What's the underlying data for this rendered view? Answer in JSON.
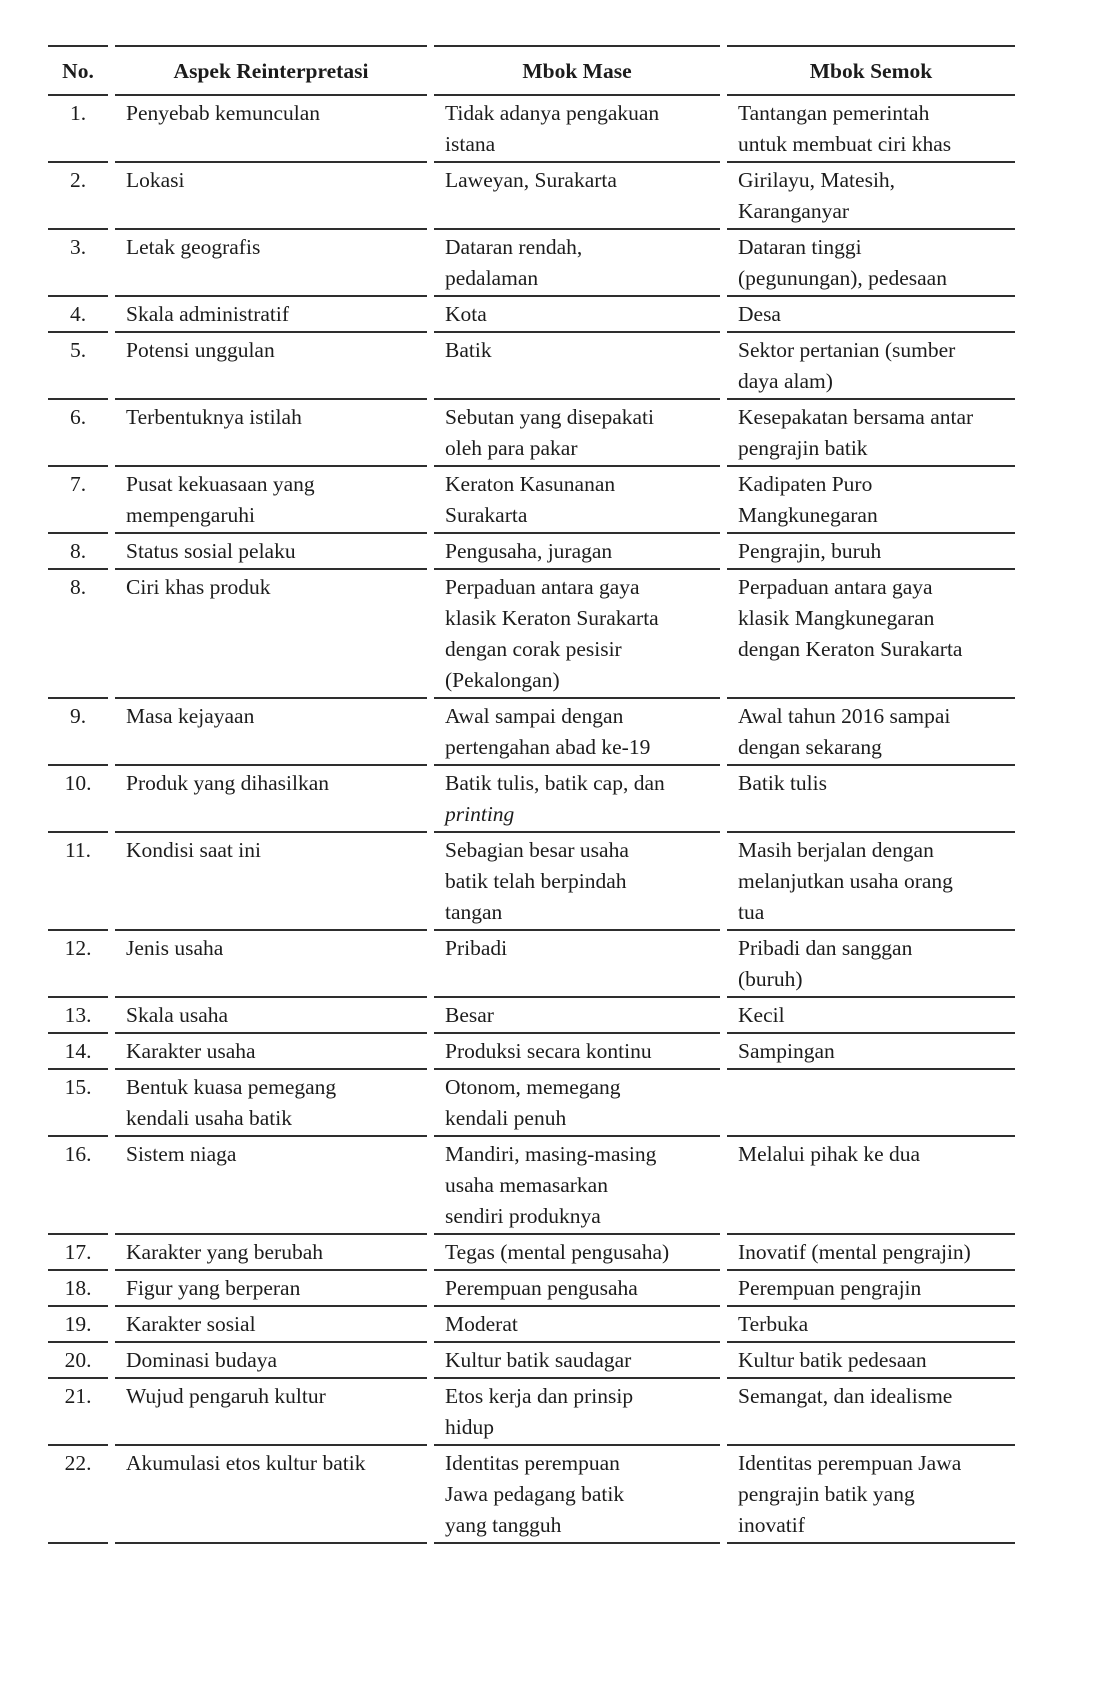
{
  "page": {
    "background_color": "#ffffff",
    "text_color": "#1c1c1c",
    "rule_color": "#2e2e2e"
  },
  "table": {
    "columns": [
      {
        "key": "no",
        "label": "No."
      },
      {
        "key": "aspek",
        "label": "Aspek Reinterpretasi"
      },
      {
        "key": "mase",
        "label": "Mbok Mase"
      },
      {
        "key": "semok",
        "label": "Mbok Semok"
      }
    ],
    "rows": [
      {
        "no": "1.",
        "aspek": "Penyebab kemunculan",
        "mase": "Tidak adanya pengakuan\nistana",
        "semok": "Tantangan pemerintah\nuntuk membuat ciri khas"
      },
      {
        "no": "2.",
        "aspek": "Lokasi",
        "mase": "Laweyan, Surakarta",
        "semok": "Girilayu, Matesih,\nKaranganyar"
      },
      {
        "no": "3.",
        "aspek": "Letak geografis",
        "mase": "Dataran rendah,\npedalaman",
        "semok": "Dataran tinggi\n(pegunungan), pedesaan"
      },
      {
        "no": "4.",
        "aspek": "Skala administratif",
        "mase": "Kota",
        "semok": "Desa"
      },
      {
        "no": "5.",
        "aspek": "Potensi unggulan",
        "mase": "Batik",
        "semok": "Sektor pertanian (sumber\ndaya alam)"
      },
      {
        "no": "6.",
        "aspek": "Terbentuknya istilah",
        "mase": "Sebutan yang disepakati\noleh para pakar",
        "semok": "Kesepakatan bersama antar\npengrajin batik"
      },
      {
        "no": "7.",
        "aspek": "Pusat kekuasaan yang\nmempengaruhi",
        "mase": "Keraton Kasunanan\nSurakarta",
        "semok": "Kadipaten Puro\nMangkunegaran"
      },
      {
        "no": "8.",
        "aspek": "Status sosial pelaku",
        "mase": "Pengusaha, juragan",
        "semok": "Pengrajin, buruh"
      },
      {
        "no": "8.",
        "aspek": "Ciri khas produk",
        "mase": "Perpaduan antara gaya\nklasik Keraton Surakarta\ndengan corak pesisir\n(Pekalongan)",
        "semok": "Perpaduan antara gaya\nklasik Mangkunegaran\ndengan Keraton Surakarta"
      },
      {
        "no": "9.",
        "aspek": "Masa kejayaan",
        "mase": "Awal sampai dengan\npertengahan abad ke-19",
        "semok": "Awal tahun 2016 sampai\ndengan sekarang"
      },
      {
        "no": "10.",
        "aspek": "Produk yang dihasilkan",
        "mase": {
          "text": "Batik tulis, batik cap, dan\nprinting",
          "italic": "printing"
        },
        "semok": "Batik tulis"
      },
      {
        "no": "11.",
        "aspek": "Kondisi saat ini",
        "mase": "Sebagian besar usaha\nbatik telah berpindah\ntangan",
        "semok": "Masih berjalan dengan\nmelanjutkan usaha orang\ntua"
      },
      {
        "no": "12.",
        "aspek": "Jenis usaha",
        "mase": "Pribadi",
        "semok": "Pribadi dan sanggan\n(buruh)"
      },
      {
        "no": "13.",
        "aspek": "Skala usaha",
        "mase": "Besar",
        "semok": "Kecil"
      },
      {
        "no": "14.",
        "aspek": "Karakter usaha",
        "mase": "Produksi secara kontinu",
        "semok": "Sampingan"
      },
      {
        "no": "15.",
        "aspek": "Bentuk kuasa pemegang\nkendali usaha batik",
        "mase": "Otonom, memegang\nkendali penuh",
        "semok": ""
      },
      {
        "no": "16.",
        "aspek": "Sistem niaga",
        "mase": "Mandiri, masing-masing\nusaha memasarkan\nsendiri produknya",
        "semok": "Melalui pihak ke dua"
      },
      {
        "no": "17.",
        "aspek": "Karakter yang berubah",
        "mase": "Tegas (mental pengusaha)",
        "semok": "Inovatif (mental pengrajin)"
      },
      {
        "no": "18.",
        "aspek": "Figur yang berperan",
        "mase": "Perempuan pengusaha",
        "semok": "Perempuan pengrajin"
      },
      {
        "no": "19.",
        "aspek": "Karakter sosial",
        "mase": "Moderat",
        "semok": "Terbuka"
      },
      {
        "no": "20.",
        "aspek": "Dominasi budaya",
        "mase": "Kultur batik saudagar",
        "semok": "Kultur batik pedesaan"
      },
      {
        "no": "21.",
        "aspek": "Wujud pengaruh kultur",
        "mase": "Etos kerja dan prinsip\nhidup",
        "semok": "Semangat, dan idealisme"
      },
      {
        "no": "22.",
        "aspek": "Akumulasi etos kultur batik",
        "mase": "Identitas perempuan\nJawa pedagang batik\nyang tangguh",
        "semok": "Identitas perempuan Jawa\npengrajin batik yang\ninovatif"
      }
    ]
  }
}
